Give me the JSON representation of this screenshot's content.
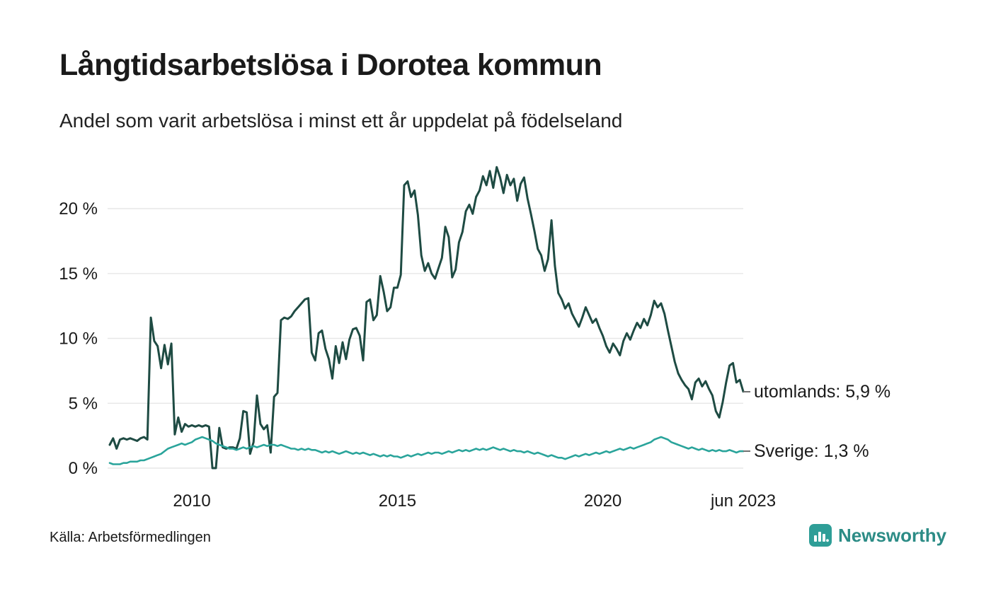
{
  "page": {
    "title": "Långtidsarbetslösa i Dorotea kommun",
    "subtitle": "Andel som varit arbetslösa i minst ett år uppdelat på födelseland",
    "source": "Källa: Arbetsförmedlingen",
    "brand": "Newsworthy"
  },
  "colors": {
    "utomlands": "#1e4b43",
    "sverige": "#2aa49b",
    "grid": "#e7e7e7",
    "text": "#1a1a1a",
    "brand_bg": "#2E9E97",
    "brand_text": "#2c8c86"
  },
  "chart_data": {
    "type": "line",
    "title": "Långtidsarbetslösa i Dorotea kommun",
    "subtitle": "Andel som varit arbetslösa i minst ett år uppdelat på födelseland",
    "xlabel": "",
    "ylabel": "",
    "unit": "%",
    "frequency": "monthly",
    "xlim": [
      2008.0,
      2023.417
    ],
    "ylim": [
      0,
      23.5
    ],
    "grid": "horizontal-only",
    "x_ticks": [
      {
        "value": 2010,
        "label": "2010"
      },
      {
        "value": 2015,
        "label": "2015"
      },
      {
        "value": 2020,
        "label": "2020"
      },
      {
        "value": 2023.417,
        "label": "jun 2023"
      }
    ],
    "y_ticks": [
      {
        "value": 0,
        "label": "0 %"
      },
      {
        "value": 5,
        "label": "5 %"
      },
      {
        "value": 10,
        "label": "10 %"
      },
      {
        "value": 15,
        "label": "15 %"
      },
      {
        "value": 20,
        "label": "20 %"
      }
    ],
    "series": [
      {
        "name": "utomlands",
        "end_label": "utomlands: 5,9 %",
        "end_value": 5.9,
        "color_key": "utomlands",
        "values": [
          1.8,
          2.3,
          1.5,
          2.2,
          2.3,
          2.2,
          2.3,
          2.2,
          2.1,
          2.3,
          2.4,
          2.2,
          11.6,
          9.8,
          9.4,
          7.7,
          9.5,
          8.0,
          9.6,
          2.6,
          3.9,
          2.8,
          3.4,
          3.2,
          3.3,
          3.2,
          3.3,
          3.2,
          3.3,
          3.2,
          0.0,
          0.0,
          3.1,
          1.6,
          1.5,
          1.6,
          1.6,
          1.5,
          2.3,
          4.4,
          4.3,
          1.1,
          2.0,
          5.6,
          3.4,
          3.0,
          3.3,
          1.2,
          5.5,
          5.8,
          11.4,
          11.6,
          11.5,
          11.7,
          12.1,
          12.4,
          12.7,
          13.0,
          13.1,
          8.9,
          8.3,
          10.4,
          10.6,
          9.2,
          8.4,
          6.9,
          9.4,
          8.1,
          9.7,
          8.4,
          9.9,
          10.7,
          10.8,
          10.2,
          8.3,
          12.8,
          13.0,
          11.4,
          11.8,
          14.8,
          13.6,
          12.1,
          12.4,
          13.9,
          13.9,
          14.9,
          21.8,
          22.1,
          20.9,
          21.4,
          19.5,
          16.4,
          15.2,
          15.8,
          15.0,
          14.6,
          15.4,
          16.2,
          18.6,
          17.8,
          14.7,
          15.3,
          17.4,
          18.2,
          19.8,
          20.3,
          19.6,
          20.9,
          21.4,
          22.5,
          21.8,
          22.9,
          21.6,
          23.2,
          22.4,
          21.2,
          22.6,
          21.8,
          22.3,
          20.6,
          21.9,
          22.4,
          20.8,
          19.6,
          18.3,
          16.9,
          16.4,
          15.2,
          16.1,
          19.1,
          15.6,
          13.5,
          13.0,
          12.3,
          12.7,
          11.9,
          11.4,
          10.9,
          11.6,
          12.4,
          11.8,
          11.2,
          11.5,
          10.8,
          10.2,
          9.4,
          8.9,
          9.6,
          9.2,
          8.7,
          9.8,
          10.4,
          9.9,
          10.6,
          11.2,
          10.8,
          11.5,
          11.0,
          11.8,
          12.9,
          12.4,
          12.7,
          11.9,
          10.6,
          9.4,
          8.2,
          7.3,
          6.8,
          6.4,
          6.1,
          5.3,
          6.6,
          6.9,
          6.3,
          6.7,
          6.1,
          5.6,
          4.4,
          3.9,
          5.1,
          6.6,
          7.9,
          8.1,
          6.6,
          6.8,
          5.9
        ]
      },
      {
        "name": "Sverige",
        "end_label": "Sverige: 1,3 %",
        "end_value": 1.3,
        "color_key": "sverige",
        "values": [
          0.4,
          0.3,
          0.3,
          0.3,
          0.4,
          0.4,
          0.5,
          0.5,
          0.5,
          0.6,
          0.6,
          0.7,
          0.8,
          0.9,
          1.0,
          1.1,
          1.3,
          1.5,
          1.6,
          1.7,
          1.8,
          1.9,
          1.8,
          1.9,
          2.0,
          2.2,
          2.3,
          2.4,
          2.3,
          2.2,
          2.1,
          1.9,
          1.8,
          1.7,
          1.6,
          1.5,
          1.5,
          1.4,
          1.5,
          1.6,
          1.5,
          1.6,
          1.7,
          1.6,
          1.7,
          1.8,
          1.7,
          1.8,
          1.8,
          1.7,
          1.8,
          1.7,
          1.6,
          1.5,
          1.5,
          1.4,
          1.5,
          1.4,
          1.5,
          1.4,
          1.4,
          1.3,
          1.2,
          1.3,
          1.2,
          1.3,
          1.2,
          1.1,
          1.2,
          1.3,
          1.2,
          1.1,
          1.2,
          1.1,
          1.2,
          1.1,
          1.0,
          1.1,
          1.0,
          0.9,
          1.0,
          0.9,
          1.0,
          0.9,
          0.9,
          0.8,
          0.9,
          1.0,
          0.9,
          1.0,
          1.1,
          1.0,
          1.1,
          1.2,
          1.1,
          1.2,
          1.2,
          1.1,
          1.2,
          1.3,
          1.2,
          1.3,
          1.4,
          1.3,
          1.4,
          1.3,
          1.4,
          1.5,
          1.4,
          1.5,
          1.4,
          1.5,
          1.6,
          1.5,
          1.4,
          1.5,
          1.4,
          1.3,
          1.4,
          1.3,
          1.3,
          1.2,
          1.3,
          1.2,
          1.1,
          1.2,
          1.1,
          1.0,
          0.9,
          1.0,
          0.9,
          0.8,
          0.8,
          0.7,
          0.8,
          0.9,
          1.0,
          0.9,
          1.0,
          1.1,
          1.0,
          1.1,
          1.2,
          1.1,
          1.2,
          1.3,
          1.2,
          1.3,
          1.4,
          1.5,
          1.4,
          1.5,
          1.6,
          1.5,
          1.6,
          1.7,
          1.8,
          1.9,
          2.0,
          2.2,
          2.3,
          2.4,
          2.3,
          2.2,
          2.0,
          1.9,
          1.8,
          1.7,
          1.6,
          1.5,
          1.6,
          1.5,
          1.4,
          1.5,
          1.4,
          1.3,
          1.4,
          1.3,
          1.4,
          1.3,
          1.3,
          1.4,
          1.3,
          1.2,
          1.3,
          1.3
        ]
      }
    ]
  }
}
